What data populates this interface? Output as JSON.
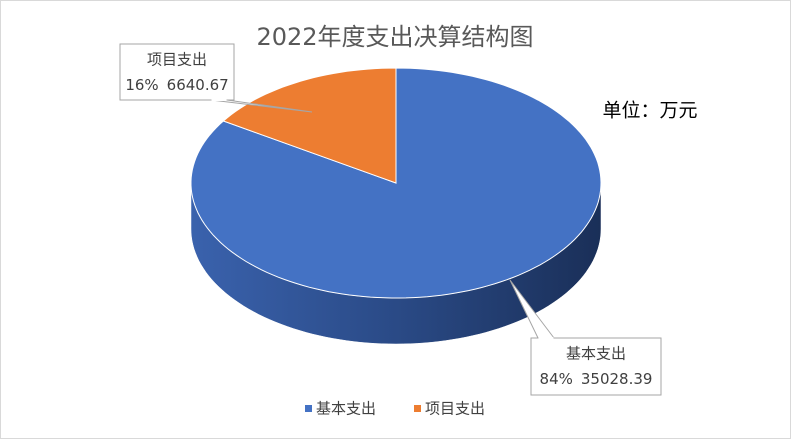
{
  "chart_data": {
    "type": "pie",
    "title": "2022年度支出决算结构图",
    "unit_note": "单位：万元",
    "categories": [
      "基本支出",
      "项目支出"
    ],
    "values": [
      35028.39,
      6640.67
    ],
    "percent_labels": [
      "84%",
      "16%"
    ],
    "colors": [
      "#4472c4",
      "#ed7d31"
    ],
    "legend": "bottom"
  }
}
